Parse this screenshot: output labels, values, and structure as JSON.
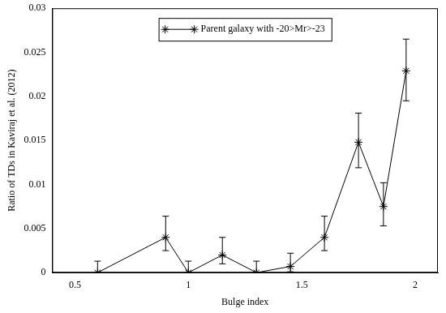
{
  "chart_data": {
    "type": "line",
    "x_label": "Bulge index",
    "y_label": "Ratio of TDs in Kaviraj et al. (2012)",
    "series": [
      {
        "name": "Parent galaxy with -20>Mr>-23",
        "color": "#000000",
        "marker": "star",
        "line_style": "solid",
        "x": [
          0.6,
          0.9,
          1.0,
          1.15,
          1.3,
          1.45,
          1.6,
          1.75,
          1.86,
          1.96
        ],
        "values": [
          0,
          0.004,
          0,
          0.002,
          0,
          0.0007,
          0.004,
          0.0148,
          0.0075,
          0.0229
        ],
        "error_low": [
          0,
          0.0025,
          0,
          0.001,
          0,
          0.0001,
          0.0025,
          0.0119,
          0.0053,
          0.0195
        ],
        "error_high": [
          0.0013,
          0.0064,
          0.0013,
          0.004,
          0.0013,
          0.0022,
          0.0064,
          0.0181,
          0.0102,
          0.0265
        ]
      }
    ],
    "xlim": [
      0.4,
      2.1
    ],
    "xticks": [
      0.5,
      1,
      1.5,
      2
    ],
    "ylim": [
      0,
      0.03
    ],
    "yticks": [
      0,
      0.005,
      0.01,
      0.015,
      0.02,
      0.025,
      0.03
    ],
    "grid": false,
    "legend": "top"
  }
}
